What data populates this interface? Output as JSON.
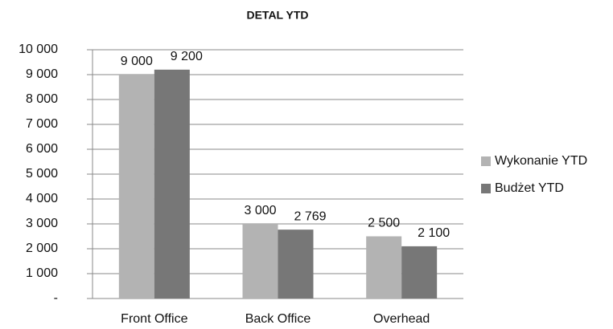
{
  "chart_data": {
    "type": "bar",
    "title": "DETAL YTD",
    "categories": [
      "Front Office",
      "Back Office",
      "Overhead"
    ],
    "series": [
      {
        "name": "Wykonanie YTD",
        "color": "#b3b3b3",
        "values": [
          9000,
          3000,
          2500
        ],
        "value_labels": [
          "9 000",
          "3 000",
          "2 500"
        ]
      },
      {
        "name": "Budżet YTD",
        "color": "#777777",
        "values": [
          9200,
          2769,
          2100
        ],
        "value_labels": [
          "9 200",
          "2 769",
          "2 100"
        ]
      }
    ],
    "ylim": [
      0,
      10000
    ],
    "yticks": [
      {
        "value": 0,
        "label": "-"
      },
      {
        "value": 1000,
        "label": "1 000"
      },
      {
        "value": 2000,
        "label": "2 000"
      },
      {
        "value": 3000,
        "label": "3 000"
      },
      {
        "value": 4000,
        "label": "4 000"
      },
      {
        "value": 5000,
        "label": "5 000"
      },
      {
        "value": 6000,
        "label": "6 000"
      },
      {
        "value": 7000,
        "label": "7 000"
      },
      {
        "value": 8000,
        "label": "8 000"
      },
      {
        "value": 9000,
        "label": "9 000"
      },
      {
        "value": 10000,
        "label": "10 000"
      }
    ],
    "grid": true,
    "legend": "right"
  }
}
